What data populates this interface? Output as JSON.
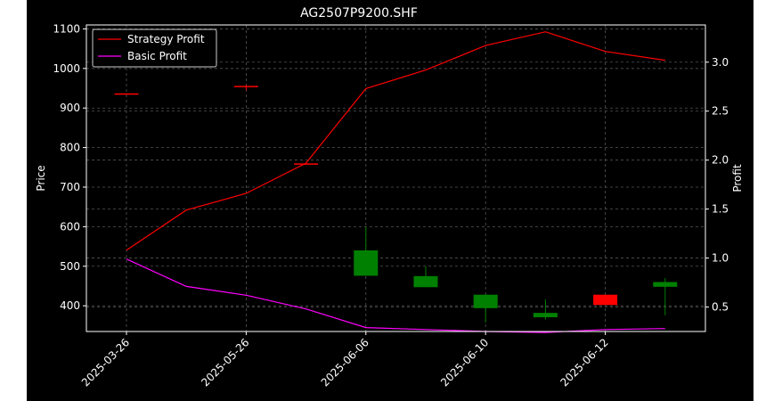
{
  "chart_data": {
    "type": "candlestick+line",
    "title": "AG2507P9200.SHF",
    "ylabel_left": "Price",
    "ylabel_right": "Profit",
    "ylim_left": [
      335,
      1110
    ],
    "ylim_right": [
      0.25,
      3.38
    ],
    "yticks_left": [
      "400",
      "500",
      "600",
      "700",
      "800",
      "900",
      "1000",
      "1100"
    ],
    "yticks_right": [
      "0.5",
      "1.0",
      "1.5",
      "2.0",
      "2.5",
      "3.0"
    ],
    "xtick_labels": [
      "2025-03-26",
      "2025-05-26",
      "2025-06-06",
      "2025-06-10",
      "2025-06-12"
    ],
    "xtick_indices": [
      0,
      2,
      4,
      6,
      8
    ],
    "grid": true,
    "legend_position": "top-left",
    "colors": {
      "up": "#ff0000",
      "down": "#008000",
      "strategy": "#ff0000",
      "basic": "#ff00ff",
      "grid": "#555555"
    },
    "candles": [
      {
        "i": 0,
        "open": 937,
        "close": 937,
        "high": 937,
        "low": 937
      },
      {
        "i": 2,
        "open": 956,
        "close": 956,
        "high": 958,
        "low": 945
      },
      {
        "i": 3,
        "open": 760,
        "close": 760,
        "high": 760,
        "low": 760
      },
      {
        "i": 4,
        "open": 540,
        "close": 476,
        "high": 600,
        "low": 476
      },
      {
        "i": 5,
        "open": 475,
        "close": 447,
        "high": 500,
        "low": 447
      },
      {
        "i": 6,
        "open": 428,
        "close": 394,
        "high": 430,
        "low": 358
      },
      {
        "i": 7,
        "open": 382,
        "close": 371,
        "high": 416,
        "low": 365
      },
      {
        "i": 8,
        "open": 402,
        "close": 428,
        "high": 428,
        "low": 402
      },
      {
        "i": 9,
        "open": 460,
        "close": 448,
        "high": 470,
        "low": 376
      }
    ],
    "series": [
      {
        "name": "Strategy Profit",
        "values": [
          1.08,
          1.49,
          1.66,
          1.97,
          2.73,
          2.92,
          3.17,
          3.31,
          3.11,
          3.02
        ]
      },
      {
        "name": "Basic Profit",
        "values": [
          0.99,
          0.71,
          0.62,
          0.48,
          0.29,
          0.27,
          0.25,
          0.24,
          0.27,
          0.28
        ]
      }
    ]
  }
}
